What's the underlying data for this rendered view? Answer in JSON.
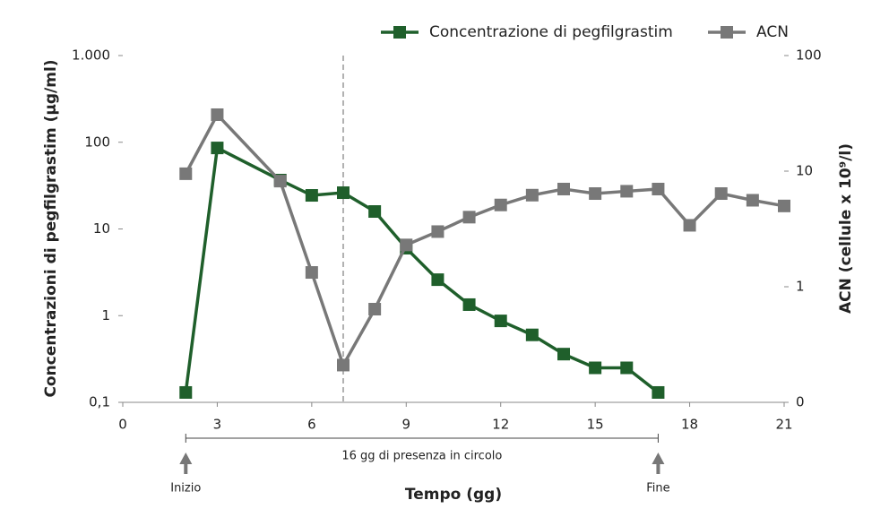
{
  "chart_data": {
    "type": "line",
    "xlabel": "Tempo (gg)",
    "ylabel": "Concentrazioni di pegfilgrastim (µg/ml)",
    "y2label": "ACN (cellule x 10⁹/l)",
    "xlim": [
      0,
      21
    ],
    "xticks": [
      0,
      3,
      6,
      9,
      12,
      15,
      18,
      21
    ],
    "ylim": [
      0.1,
      1000
    ],
    "yticks": [
      {
        "value": 0.1,
        "label": "0,1"
      },
      1,
      10,
      100,
      {
        "value": 1000,
        "label": "1.000"
      }
    ],
    "y2lim": [
      0.1,
      100
    ],
    "y2ticks": [
      {
        "value": 0.1,
        "label": "0"
      },
      1,
      10,
      100
    ],
    "log_scale": true,
    "legend": "top-right",
    "vline": 7,
    "annotations": {
      "span": {
        "text": "16 gg di presenza in circolo",
        "x": [
          2,
          17
        ]
      },
      "start": {
        "text": "Inizio",
        "x": 2
      },
      "end": {
        "text": "Fine",
        "x": 17
      }
    },
    "series": [
      {
        "name": "Concentrazione di pegfilgrastim",
        "color": "#1f5f2b",
        "axis": "y",
        "x": [
          2,
          3,
          5,
          6,
          7,
          8,
          9,
          10,
          11,
          12,
          13,
          14,
          15,
          16,
          17
        ],
        "values": [
          0.13,
          86,
          36.6,
          24.4,
          26.2,
          15.9,
          6.0,
          2.6,
          1.34,
          0.87,
          0.6,
          0.36,
          0.25,
          0.25,
          0.13
        ]
      },
      {
        "name": "ACN",
        "color": "#787878",
        "axis": "y2",
        "x": [
          2,
          3,
          5,
          6,
          7,
          8,
          9,
          10,
          11,
          12,
          13,
          14,
          15,
          16,
          17,
          18,
          19,
          20,
          21
        ],
        "values": [
          9.5,
          30.8,
          8.2,
          1.33,
          0.21,
          0.64,
          2.3,
          3.0,
          4.0,
          5.1,
          6.2,
          7.0,
          6.4,
          6.7,
          7.0,
          3.4,
          6.4,
          5.6,
          5.0
        ]
      }
    ]
  }
}
